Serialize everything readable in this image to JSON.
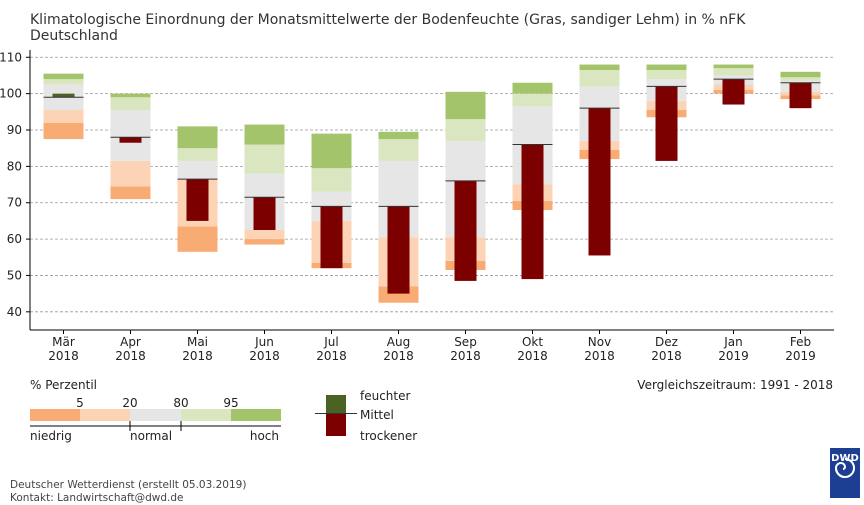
{
  "title_line1": "Klimatologische Einordnung der Monatsmittelwerte der Bodenfeuchte (Gras, sandiger Lehm) in % nFK",
  "title_line2": "Deutschland",
  "colors": {
    "p_low_dark": "#f8ac74",
    "p_low_light": "#fcd3b4",
    "p_normal": "#e6e6e6",
    "p_high_light": "#d9e6bf",
    "p_high_dark": "#a3c46b",
    "wetter": "#4a6324",
    "drier": "#7d0000",
    "grid": "#999999"
  },
  "chart_data": {
    "type": "bar",
    "y_range": [
      35,
      112
    ],
    "y_ticks": [
      40,
      50,
      60,
      70,
      80,
      90,
      100,
      110
    ],
    "categories": [
      [
        "Mär",
        "2018"
      ],
      [
        "Apr",
        "2018"
      ],
      [
        "Mai",
        "2018"
      ],
      [
        "Jun",
        "2018"
      ],
      [
        "Jul",
        "2018"
      ],
      [
        "Aug",
        "2018"
      ],
      [
        "Sep",
        "2018"
      ],
      [
        "Okt",
        "2018"
      ],
      [
        "Nov",
        "2018"
      ],
      [
        "Dez",
        "2018"
      ],
      [
        "Jan",
        "2019"
      ],
      [
        "Feb",
        "2019"
      ]
    ],
    "percentiles": {
      "min": [
        87.5,
        71,
        56.5,
        58.5,
        52,
        42.5,
        51.5,
        68,
        82,
        93.5,
        100,
        98.5
      ],
      "p5": [
        92,
        74.5,
        63.5,
        60,
        53.5,
        47,
        54,
        70.5,
        84.5,
        95.5,
        101,
        99.5
      ],
      "p20": [
        95.5,
        81.5,
        76.5,
        62.5,
        65,
        60.5,
        60.5,
        75,
        87,
        98,
        102.5,
        100.5
      ],
      "p80": [
        102.5,
        95.5,
        81.5,
        78,
        73,
        81.5,
        87,
        96.5,
        102,
        104,
        105,
        103.5
      ],
      "p95": [
        104,
        99,
        85,
        86,
        79.5,
        87.5,
        93,
        100,
        106.5,
        106.5,
        107,
        104.5
      ],
      "max": [
        105.5,
        100,
        91,
        91.5,
        89,
        89.5,
        100.5,
        103,
        108,
        108,
        108,
        106
      ]
    },
    "mean": [
      99,
      88,
      76.5,
      71.5,
      69,
      69,
      76,
      86,
      96,
      102,
      104,
      103
    ],
    "value": [
      100,
      86.5,
      65,
      62.5,
      52,
      45,
      48.5,
      49,
      55.5,
      81.5,
      97,
      96
    ]
  },
  "legend": {
    "percentile_title": "% Perzentil",
    "percentile_ticks": [
      "5",
      "20",
      "80",
      "95"
    ],
    "low_label": "niedrig",
    "normal_label": "normal",
    "high_label": "hoch",
    "wetter_label": "feuchter",
    "mean_label": "Mittel",
    "drier_label": "trockener",
    "reference_period": "Vergleichszeitraum: 1991 - 2018"
  },
  "footer": {
    "line1": "Deutscher Wetterdienst (erstellt 05.03.2019)",
    "line2": "Kontakt: Landwirtschaft@dwd.de"
  },
  "logo_text": "DWD"
}
